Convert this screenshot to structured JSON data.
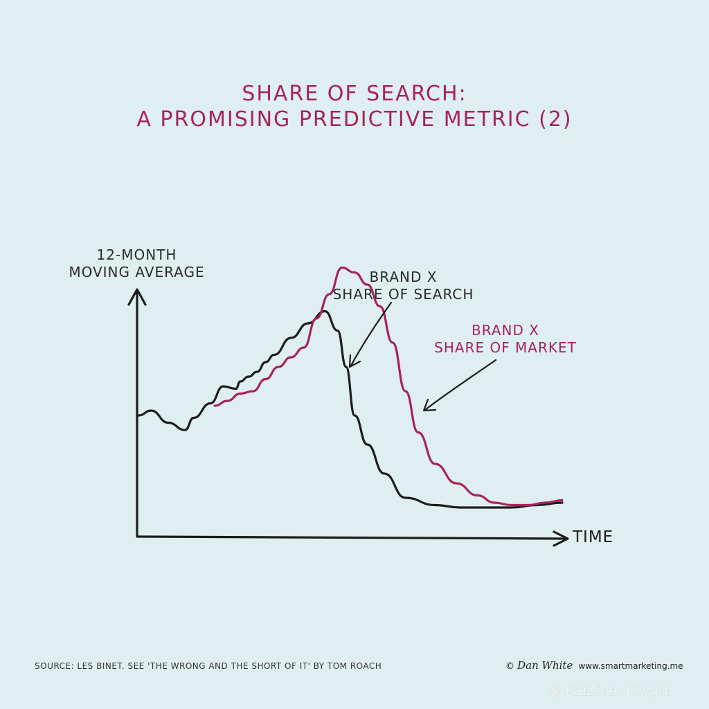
{
  "chart_data": {
    "type": "line",
    "title_lines": [
      "SHARE OF SEARCH:",
      "A PROMISING PREDICTIVE METRIC (2)"
    ],
    "ylabel_lines": [
      "12-MONTH",
      "MOVING AVERAGE"
    ],
    "xlabel": "TIME",
    "grid": false,
    "axis_ranges": {
      "x": [
        0,
        100
      ],
      "y": [
        0,
        100
      ]
    },
    "series": [
      {
        "name": "BRAND X SHARE OF SEARCH",
        "label_lines": [
          "BRAND X",
          "SHARE OF SEARCH"
        ],
        "color": "#1c1c1c",
        "x": [
          0,
          3,
          7,
          11,
          13,
          17,
          20,
          23,
          24,
          26,
          28,
          30,
          32,
          36,
          40,
          44,
          47,
          49,
          51,
          54,
          58,
          63,
          70,
          76,
          82,
          88,
          94,
          100
        ],
        "y": [
          50,
          52,
          47,
          44,
          49,
          55,
          62,
          61,
          64,
          66,
          68,
          72,
          75,
          82,
          88,
          93,
          85,
          70,
          50,
          38,
          26,
          16,
          13,
          12,
          12,
          12,
          13,
          14
        ]
      },
      {
        "name": "BRAND X SHARE OF MARKET",
        "label_lines": [
          "BRAND X",
          "SHARE OF MARKET"
        ],
        "color": "#a8235a",
        "x": [
          18,
          21,
          24,
          27,
          30,
          33,
          36,
          39,
          42,
          45,
          48,
          51,
          54,
          57,
          60,
          63,
          66,
          70,
          75,
          80,
          84,
          88,
          92,
          96,
          100
        ],
        "y": [
          54,
          56,
          59,
          60,
          65,
          70,
          74,
          78,
          90,
          100,
          111,
          109,
          104,
          95,
          80,
          60,
          43,
          30,
          22,
          17,
          14,
          13,
          13,
          14,
          15
        ]
      }
    ]
  },
  "footer": {
    "source": "SOURCE: LES BINET. SEE 'THE WRONG AND THE SHORT OF IT' BY TOM ROACH",
    "copyright_symbol": "©",
    "signature": "Dan White",
    "url": "www.smartmarketing.me",
    "watermark": "@ KaiZhen Crypto"
  }
}
